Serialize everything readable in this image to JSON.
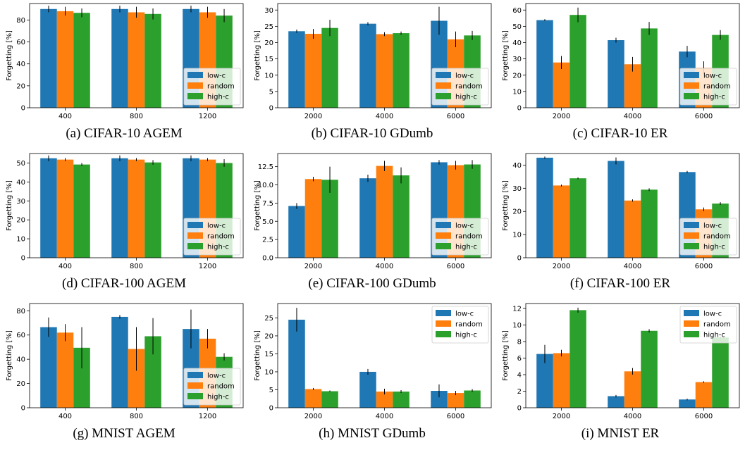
{
  "colors": {
    "low-c": "#1f77b4",
    "random": "#ff7f0e",
    "high-c": "#2ca02c"
  },
  "chart_data": [
    {
      "type": "bar",
      "caption": "(a) CIFAR-10 AGEM",
      "ylabel": "Forgetting [%]",
      "categories": [
        "400",
        "800",
        "1200"
      ],
      "ylim": [
        0,
        95
      ],
      "yticks": [
        0,
        20,
        40,
        60,
        80
      ],
      "yfmt": "int",
      "legend": "lower-right",
      "series": [
        {
          "name": "low-c",
          "values": [
            90,
            90,
            90
          ],
          "err": [
            3,
            3,
            3
          ]
        },
        {
          "name": "random",
          "values": [
            88,
            87,
            87
          ],
          "err": [
            4,
            5,
            5
          ]
        },
        {
          "name": "high-c",
          "values": [
            86.5,
            85.5,
            84
          ],
          "err": [
            4,
            5,
            6
          ]
        }
      ]
    },
    {
      "type": "bar",
      "caption": "(b) CIFAR-10 GDumb",
      "ylabel": "Forgetting [%]",
      "categories": [
        "2000",
        "4000",
        "6000"
      ],
      "ylim": [
        0,
        32
      ],
      "yticks": [
        0,
        5,
        10,
        15,
        20,
        25,
        30
      ],
      "yfmt": "int",
      "legend": "lower-right",
      "series": [
        {
          "name": "low-c",
          "values": [
            23.5,
            25.8,
            26.7
          ],
          "err": [
            0.5,
            0.5,
            4.3
          ]
        },
        {
          "name": "random",
          "values": [
            22.7,
            22.6,
            21.0
          ],
          "err": [
            1.5,
            0.6,
            2.4
          ]
        },
        {
          "name": "high-c",
          "values": [
            24.5,
            22.9,
            22.2
          ],
          "err": [
            2.5,
            0.5,
            1.4
          ]
        }
      ]
    },
    {
      "type": "bar",
      "caption": "(c) CIFAR-10 ER",
      "ylabel": "Forgetting [%]",
      "categories": [
        "2000",
        "4000",
        "6000"
      ],
      "ylim": [
        0,
        64
      ],
      "yticks": [
        0,
        10,
        20,
        30,
        40,
        50,
        60
      ],
      "yfmt": "int",
      "legend": "lower-right",
      "series": [
        {
          "name": "low-c",
          "values": [
            53.8,
            41.5,
            34.5
          ],
          "err": [
            0.6,
            1.5,
            3.5
          ]
        },
        {
          "name": "random",
          "values": [
            27.8,
            26.7,
            24.5
          ],
          "err": [
            4,
            4.5,
            4
          ]
        },
        {
          "name": "high-c",
          "values": [
            57.0,
            48.7,
            44.7
          ],
          "err": [
            4.5,
            4,
            3
          ]
        }
      ]
    },
    {
      "type": "bar",
      "caption": "(d) CIFAR-100 AGEM",
      "ylabel": "Forgetting [%]",
      "categories": [
        "400",
        "800",
        "1200"
      ],
      "ylim": [
        0,
        55
      ],
      "yticks": [
        0,
        10,
        20,
        30,
        40,
        50
      ],
      "yfmt": "int",
      "legend": "lower-right",
      "series": [
        {
          "name": "low-c",
          "values": [
            52.5,
            52.5,
            52.5
          ],
          "err": [
            1.5,
            1.5,
            1.5
          ]
        },
        {
          "name": "random",
          "values": [
            51.8,
            51.8,
            51.8
          ],
          "err": [
            0.8,
            0.8,
            0.8
          ]
        },
        {
          "name": "high-c",
          "values": [
            49.2,
            50.3,
            50.0
          ],
          "err": [
            0.8,
            1.2,
            2
          ]
        }
      ]
    },
    {
      "type": "bar",
      "caption": "(e) CIFAR-100 GDumb",
      "ylabel": "Forgetting [%]",
      "categories": [
        "2000",
        "4000",
        "6000"
      ],
      "ylim": [
        0,
        14.3
      ],
      "yticks": [
        0,
        2.5,
        5,
        7.5,
        10,
        12.5
      ],
      "yfmt": "1dp",
      "legend": "lower-right",
      "series": [
        {
          "name": "low-c",
          "values": [
            7.1,
            10.9,
            13.1
          ],
          "err": [
            0.4,
            0.5,
            0.3
          ]
        },
        {
          "name": "random",
          "values": [
            10.8,
            12.6,
            12.7
          ],
          "err": [
            0.3,
            0.7,
            0.6
          ]
        },
        {
          "name": "high-c",
          "values": [
            10.7,
            11.3,
            12.8
          ],
          "err": [
            1.8,
            1.1,
            0.6
          ]
        }
      ]
    },
    {
      "type": "bar",
      "caption": "(f) CIFAR-100 ER",
      "ylabel": "Forgetting [%]",
      "categories": [
        "2000",
        "4000",
        "6000"
      ],
      "ylim": [
        0,
        45
      ],
      "yticks": [
        0,
        10,
        20,
        30,
        40
      ],
      "yfmt": "int",
      "legend": "lower-right",
      "series": [
        {
          "name": "low-c",
          "values": [
            43.2,
            41.8,
            37.0
          ],
          "err": [
            0.5,
            1.5,
            0.5
          ]
        },
        {
          "name": "random",
          "values": [
            31.2,
            24.7,
            20.9
          ],
          "err": [
            0.4,
            0.5,
            0.8
          ]
        },
        {
          "name": "high-c",
          "values": [
            34.3,
            29.4,
            23.4
          ],
          "err": [
            0.4,
            0.6,
            0.6
          ]
        }
      ]
    },
    {
      "type": "bar",
      "caption": "(g) MNIST AGEM",
      "ylabel": "Forgetting [%]",
      "categories": [
        "400",
        "800",
        "1200"
      ],
      "ylim": [
        0,
        86
      ],
      "yticks": [
        0,
        20,
        40,
        60,
        80
      ],
      "yfmt": "int",
      "legend": "lower-right",
      "series": [
        {
          "name": "low-c",
          "values": [
            66.5,
            75.0,
            65.0
          ],
          "err": [
            8,
            1.5,
            16
          ]
        },
        {
          "name": "random",
          "values": [
            62.0,
            48.5,
            57.0
          ],
          "err": [
            7,
            18,
            8
          ]
        },
        {
          "name": "high-c",
          "values": [
            49.5,
            59.0,
            42.0
          ],
          "err": [
            17,
            15,
            3
          ]
        }
      ]
    },
    {
      "type": "bar",
      "caption": "(h) MNIST GDumb",
      "ylabel": "Forgetting [%]",
      "categories": [
        "2000",
        "4000",
        "6000"
      ],
      "ylim": [
        0,
        29
      ],
      "yticks": [
        0,
        5,
        10,
        15,
        20,
        25
      ],
      "yfmt": "int",
      "legend": "upper-right",
      "series": [
        {
          "name": "low-c",
          "values": [
            24.5,
            10.0,
            4.7
          ],
          "err": [
            3.3,
            0.8,
            1.8
          ]
        },
        {
          "name": "random",
          "values": [
            5.2,
            4.5,
            4.1
          ],
          "err": [
            0.3,
            0.8,
            0.6
          ]
        },
        {
          "name": "high-c",
          "values": [
            4.6,
            4.5,
            4.8
          ],
          "err": [
            0.2,
            0.4,
            0.4
          ]
        }
      ]
    },
    {
      "type": "bar",
      "caption": "(i) MNIST ER",
      "ylabel": "Forgetting [%]",
      "categories": [
        "2000",
        "4000",
        "6000"
      ],
      "ylim": [
        0,
        12.6
      ],
      "yticks": [
        0,
        2,
        4,
        6,
        8,
        10,
        12
      ],
      "yfmt": "int",
      "legend": "upper-right",
      "series": [
        {
          "name": "low-c",
          "values": [
            6.5,
            1.4,
            1.0
          ],
          "err": [
            1.1,
            0.15,
            0.1
          ]
        },
        {
          "name": "random",
          "values": [
            6.6,
            4.4,
            3.1
          ],
          "err": [
            0.4,
            0.4,
            0.1
          ]
        },
        {
          "name": "high-c",
          "values": [
            11.8,
            9.3,
            8.5
          ],
          "err": [
            0.3,
            0.2,
            0.1
          ]
        }
      ]
    }
  ]
}
